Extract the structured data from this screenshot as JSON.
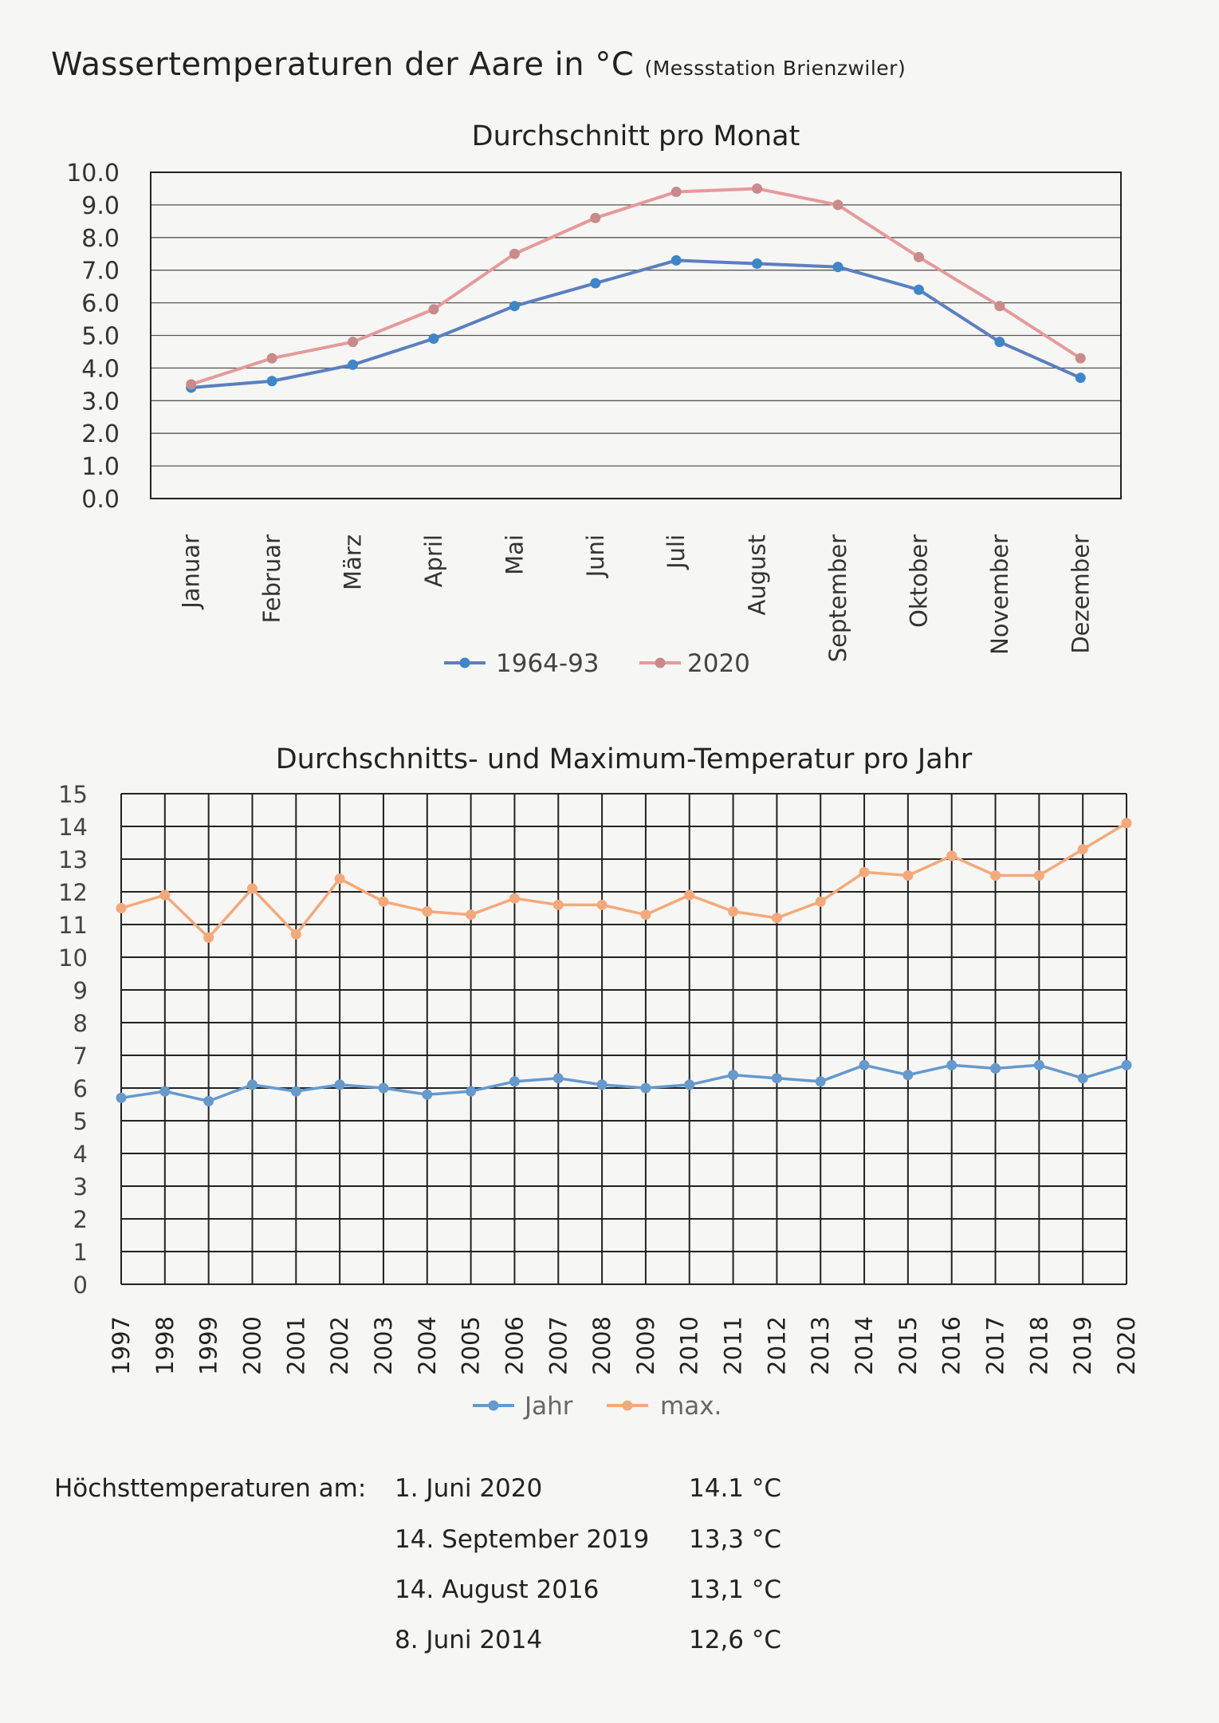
{
  "title": {
    "main": "Wassertemperaturen der Aare in °C",
    "sub": "(Messstation Brienzwiler)"
  },
  "chart_data": [
    {
      "type": "line",
      "title": "Durchschnitt pro Monat",
      "categories": [
        "Januar",
        "Februar",
        "März",
        "April",
        "Mai",
        "Juni",
        "Juli",
        "August",
        "September",
        "Oktober",
        "November",
        "Dezember"
      ],
      "ylim": [
        0,
        10
      ],
      "yticks": [
        "0.0",
        "1.0",
        "2.0",
        "3.0",
        "4.0",
        "5.0",
        "6.0",
        "7.0",
        "8.0",
        "9.0",
        "10.0"
      ],
      "series": [
        {
          "name": "1964-93",
          "color": "#5b7fbf",
          "marker": "#3d86c8",
          "values": [
            3.4,
            3.6,
            4.1,
            4.9,
            5.9,
            6.6,
            7.3,
            7.2,
            7.1,
            6.4,
            4.8,
            3.7
          ]
        },
        {
          "name": "2020",
          "color": "#e59a9a",
          "marker": "#c98a8a",
          "values": [
            3.5,
            4.3,
            4.8,
            5.8,
            7.5,
            8.6,
            9.4,
            9.5,
            9.0,
            7.4,
            5.9,
            4.3
          ]
        }
      ],
      "legend_position": "bottom"
    },
    {
      "type": "line",
      "title": "Durchschnitts- und Maximum-Temperatur pro Jahr",
      "categories": [
        "1997",
        "1998",
        "1999",
        "2000",
        "2001",
        "2002",
        "2003",
        "2004",
        "2005",
        "2006",
        "2007",
        "2008",
        "2009",
        "2010",
        "2011",
        "2012",
        "2013",
        "2014",
        "2015",
        "2016",
        "2017",
        "2018",
        "2019",
        "2020"
      ],
      "ylim": [
        0,
        15
      ],
      "yticks": [
        "0",
        "1",
        "2",
        "3",
        "4",
        "5",
        "6",
        "7",
        "8",
        "9",
        "10",
        "11",
        "12",
        "13",
        "14",
        "15"
      ],
      "series": [
        {
          "name": "Jahr",
          "color": "#6699cc",
          "marker": "#6699cc",
          "values": [
            5.7,
            5.9,
            5.6,
            6.1,
            5.9,
            6.1,
            6.0,
            5.8,
            5.9,
            6.2,
            6.3,
            6.1,
            6.0,
            6.1,
            6.4,
            6.3,
            6.2,
            6.7,
            6.4,
            6.7,
            6.6,
            6.7,
            6.3,
            6.7
          ]
        },
        {
          "name": "max.",
          "color": "#f4a97a",
          "marker": "#f4a97a",
          "values": [
            11.5,
            11.9,
            10.6,
            12.1,
            10.7,
            12.4,
            11.7,
            11.4,
            11.3,
            11.8,
            11.6,
            11.6,
            11.3,
            11.9,
            11.4,
            11.2,
            11.7,
            12.6,
            12.5,
            13.1,
            12.5,
            12.5,
            13.3,
            14.1
          ]
        }
      ],
      "grid": true,
      "legend_position": "bottom"
    }
  ],
  "highs": {
    "label": "Höchsttemperaturen am:",
    "rows": [
      {
        "date": "1. Juni 2020",
        "value": "14.1 °C"
      },
      {
        "date": "14. September 2019",
        "value": "13,3 °C"
      },
      {
        "date": "14. August 2016",
        "value": "13,1 °C"
      },
      {
        "date": "8. Juni 2014",
        "value": "12,6 °C"
      }
    ]
  }
}
